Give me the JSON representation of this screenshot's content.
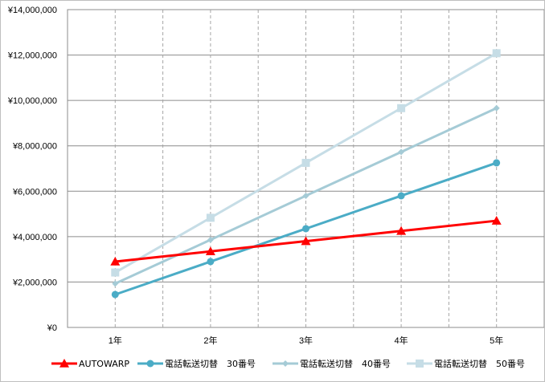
{
  "chart_data": {
    "type": "line",
    "categories": [
      "1年",
      "2年",
      "3年",
      "4年",
      "5年"
    ],
    "ylim": [
      0,
      14000000
    ],
    "ytick_step": 2000000,
    "y_tick_labels": [
      "¥0",
      "¥2,000,000",
      "¥4,000,000",
      "¥6,000,000",
      "¥8,000,000",
      "¥10,000,000",
      "¥12,000,000",
      "¥14,000,000"
    ],
    "grid": {
      "horizontal": true,
      "vertical": "dashed"
    },
    "legend_position": "bottom",
    "series": [
      {
        "name": "AUTOWARP",
        "values": [
          2900000,
          3350000,
          3800000,
          4250000,
          4700000
        ],
        "color": "#ff0000",
        "marker": "triangle"
      },
      {
        "name": "電話転送切替　30番号",
        "values": [
          1450000,
          2900000,
          4350000,
          5800000,
          7250000
        ],
        "color": "#4bacc6",
        "marker": "circle"
      },
      {
        "name": "電話転送切替　40番号",
        "values": [
          1930000,
          3860000,
          5800000,
          7730000,
          9660000
        ],
        "color": "#a5cbd6",
        "marker": "diamond"
      },
      {
        "name": "電話転送切替　50番号",
        "values": [
          2420000,
          4830000,
          7250000,
          9660000,
          12080000
        ],
        "color": "#c6dde6",
        "marker": "square"
      }
    ]
  }
}
